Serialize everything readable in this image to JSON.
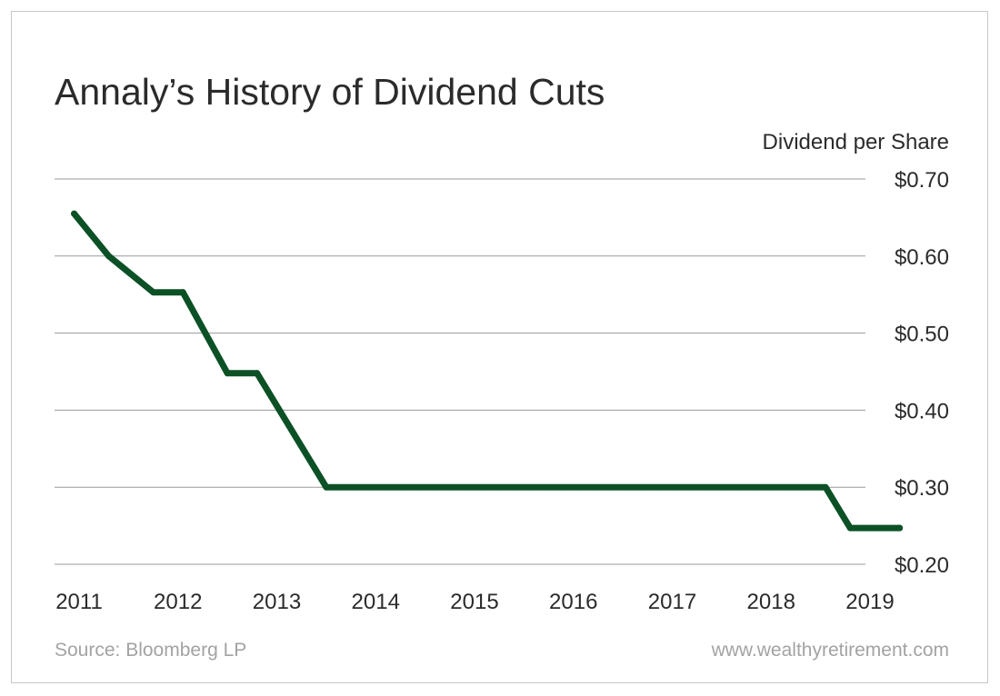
{
  "footer": {
    "source": "Source: Bloomberg LP",
    "website": "www.wealthyretirement.com"
  },
  "colors": {
    "line": "#0c5126",
    "grid": "#9a9a9a",
    "text": "#2b2b2b",
    "muted": "#a3a3a3",
    "border": "#c8c8c8"
  },
  "chart_data": {
    "type": "line",
    "title": "Annaly’s History of Dividend Cuts",
    "ylabel": "Dividend per Share",
    "xlabel": "",
    "x_ticks": [
      "2011",
      "2012",
      "2013",
      "2014",
      "2015",
      "2016",
      "2017",
      "2018",
      "2019"
    ],
    "y_ticks": [
      "$0.70",
      "$0.60",
      "$0.50",
      "$0.40",
      "$0.30",
      "$0.20"
    ],
    "xlim": [
      2011,
      2019
    ],
    "ylim": [
      0.2,
      0.7
    ],
    "y_axis_position": "right",
    "grid": "horizontal",
    "series": [
      {
        "x": [
          2010.95,
          2011.3,
          2011.75,
          2012.05,
          2012.5,
          2012.8,
          2013.5,
          2018.55,
          2018.8,
          2019.3
        ],
        "y": [
          0.655,
          0.6,
          0.553,
          0.553,
          0.448,
          0.448,
          0.3,
          0.3,
          0.247,
          0.247
        ]
      }
    ]
  }
}
